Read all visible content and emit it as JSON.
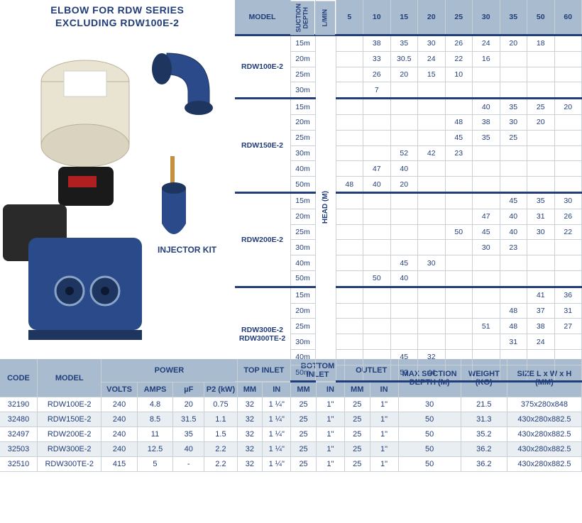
{
  "heading_line1": "ELBOW FOR RDW SERIES",
  "heading_line2": "EXCLUDING RDW100E-2",
  "injector_label": "INJECTOR KIT",
  "perf_headers": {
    "model": "MODEL",
    "suction": "SUCTION DEPTH",
    "lmin": "L/MIN",
    "heads": [
      "5",
      "10",
      "15",
      "20",
      "25",
      "30",
      "35",
      "50",
      "60"
    ],
    "head_label": "HEAD (M)"
  },
  "perf_groups": [
    {
      "model": "RDW100E-2",
      "rows": [
        {
          "d": "15m",
          "v": [
            "",
            "38",
            "35",
            "30",
            "26",
            "24",
            "20",
            "18",
            ""
          ]
        },
        {
          "d": "20m",
          "v": [
            "",
            "33",
            "30.5",
            "24",
            "22",
            "16",
            "",
            "",
            ""
          ]
        },
        {
          "d": "25m",
          "v": [
            "",
            "26",
            "20",
            "15",
            "10",
            "",
            "",
            "",
            ""
          ]
        },
        {
          "d": "30m",
          "v": [
            "",
            "7",
            "",
            "",
            "",
            "",
            "",
            "",
            ""
          ]
        }
      ]
    },
    {
      "model": "RDW150E-2",
      "rows": [
        {
          "d": "15m",
          "v": [
            "",
            "",
            "",
            "",
            "",
            "40",
            "35",
            "25",
            "20"
          ]
        },
        {
          "d": "20m",
          "v": [
            "",
            "",
            "",
            "",
            "48",
            "38",
            "30",
            "20",
            ""
          ]
        },
        {
          "d": "25m",
          "v": [
            "",
            "",
            "",
            "",
            "45",
            "35",
            "25",
            "",
            ""
          ]
        },
        {
          "d": "30m",
          "v": [
            "",
            "",
            "52",
            "42",
            "23",
            "",
            "",
            "",
            ""
          ]
        },
        {
          "d": "40m",
          "v": [
            "",
            "47",
            "40",
            "",
            "",
            "",
            "",
            "",
            ""
          ]
        },
        {
          "d": "50m",
          "v": [
            "48",
            "40",
            "20",
            "",
            "",
            "",
            "",
            "",
            ""
          ]
        }
      ]
    },
    {
      "model": "RDW200E-2",
      "rows": [
        {
          "d": "15m",
          "v": [
            "",
            "",
            "",
            "",
            "",
            "",
            "45",
            "35",
            "30"
          ]
        },
        {
          "d": "20m",
          "v": [
            "",
            "",
            "",
            "",
            "",
            "47",
            "40",
            "31",
            "26"
          ]
        },
        {
          "d": "25m",
          "v": [
            "",
            "",
            "",
            "",
            "50",
            "45",
            "40",
            "30",
            "22"
          ]
        },
        {
          "d": "30m",
          "v": [
            "",
            "",
            "",
            "",
            "",
            "30",
            "23",
            "",
            ""
          ]
        },
        {
          "d": "40m",
          "v": [
            "",
            "",
            "45",
            "30",
            "",
            "",
            "",
            "",
            ""
          ]
        },
        {
          "d": "50m",
          "v": [
            "",
            "50",
            "40",
            "",
            "",
            "",
            "",
            "",
            ""
          ]
        }
      ]
    },
    {
      "model": "RDW300E-2\nRDW300TE-2",
      "rows": [
        {
          "d": "15m",
          "v": [
            "",
            "",
            "",
            "",
            "",
            "",
            "",
            "41",
            "36"
          ]
        },
        {
          "d": "20m",
          "v": [
            "",
            "",
            "",
            "",
            "",
            "",
            "48",
            "37",
            "31"
          ]
        },
        {
          "d": "25m",
          "v": [
            "",
            "",
            "",
            "",
            "",
            "51",
            "48",
            "38",
            "27"
          ]
        },
        {
          "d": "30m",
          "v": [
            "",
            "",
            "",
            "",
            "",
            "",
            "31",
            "24",
            ""
          ]
        },
        {
          "d": "40m",
          "v": [
            "",
            "",
            "45",
            "32",
            "",
            "",
            "",
            "",
            ""
          ]
        },
        {
          "d": "50m",
          "v": [
            "",
            "",
            "53",
            "44",
            "",
            "",
            "",
            "",
            ""
          ]
        }
      ]
    }
  ],
  "spec_headers": {
    "code": "CODE",
    "model": "MODEL",
    "power": "POWER",
    "volts": "VOLTS",
    "amps": "AMPS",
    "uf": "µF",
    "p2": "P2 (kW)",
    "top": "TOP INLET",
    "bottom": "BOTTOM INLET",
    "outlet": "OUTLET",
    "mm": "MM",
    "in": "IN",
    "maxs": "MAX SUCTION DEPTH (M)",
    "weight": "WEIGHT (KG)",
    "size": "SIZE L x W x H (MM)"
  },
  "spec_rows": [
    {
      "code": "32190",
      "model": "RDW100E-2",
      "volts": "240",
      "amps": "4.8",
      "uf": "20",
      "p2": "0.75",
      "timm": "32",
      "tiin": "1 ¼\"",
      "bimm": "25",
      "biin": "1\"",
      "omm": "25",
      "oin": "1\"",
      "maxs": "30",
      "w": "21.5",
      "size": "375x280x848"
    },
    {
      "code": "32480",
      "model": "RDW150E-2",
      "volts": "240",
      "amps": "8.5",
      "uf": "31.5",
      "p2": "1.1",
      "timm": "32",
      "tiin": "1 ¼\"",
      "bimm": "25",
      "biin": "1\"",
      "omm": "25",
      "oin": "1\"",
      "maxs": "50",
      "w": "31.3",
      "size": "430x280x882.5"
    },
    {
      "code": "32497",
      "model": "RDW200E-2",
      "volts": "240",
      "amps": "11",
      "uf": "35",
      "p2": "1.5",
      "timm": "32",
      "tiin": "1 ¼\"",
      "bimm": "25",
      "biin": "1\"",
      "omm": "25",
      "oin": "1\"",
      "maxs": "50",
      "w": "35.2",
      "size": "430x280x882.5"
    },
    {
      "code": "32503",
      "model": "RDW300E-2",
      "volts": "240",
      "amps": "12.5",
      "uf": "40",
      "p2": "2.2",
      "timm": "32",
      "tiin": "1 ¼\"",
      "bimm": "25",
      "biin": "1\"",
      "omm": "25",
      "oin": "1\"",
      "maxs": "50",
      "w": "36.2",
      "size": "430x280x882.5"
    },
    {
      "code": "32510",
      "model": "RDW300TE-2",
      "volts": "415",
      "amps": "5",
      "uf": "-",
      "p2": "2.2",
      "timm": "32",
      "tiin": "1 ¼\"",
      "bimm": "25",
      "biin": "1\"",
      "omm": "25",
      "oin": "1\"",
      "maxs": "50",
      "w": "36.2",
      "size": "430x280x882.5"
    }
  ]
}
